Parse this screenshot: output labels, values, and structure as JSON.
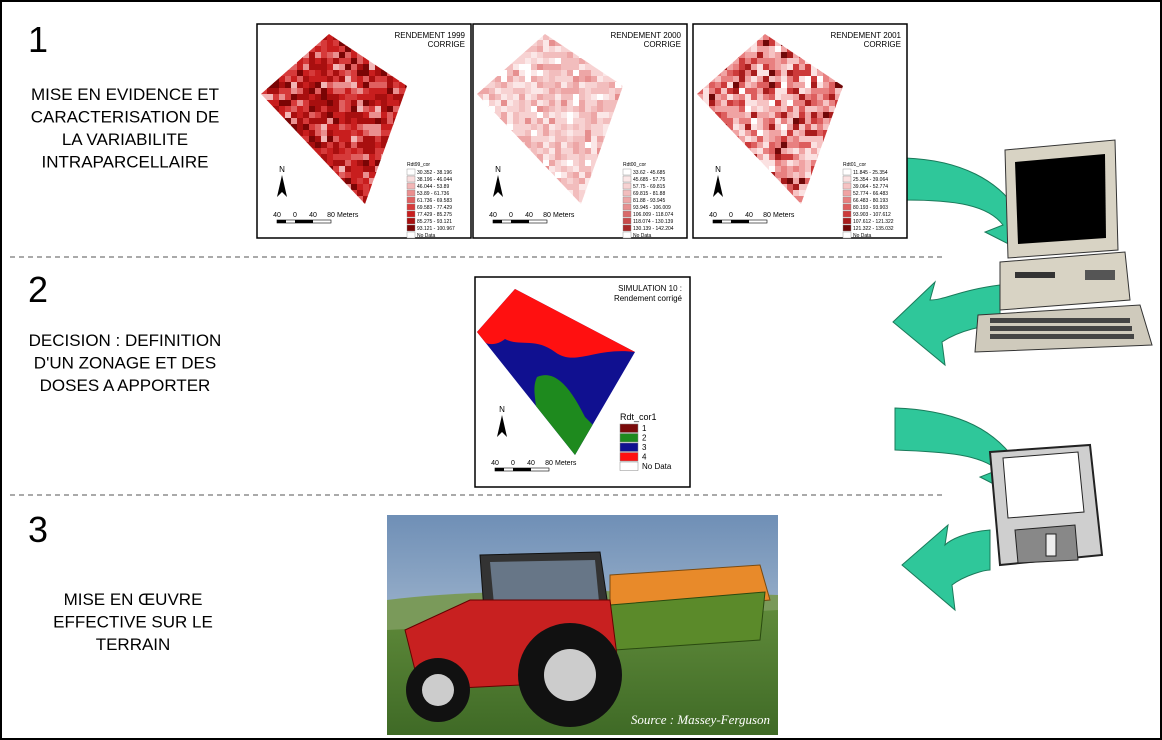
{
  "steps": [
    {
      "number": "1",
      "text": [
        "MISE EN EVIDENCE ET",
        "CARACTERISATION DE",
        "LA VARIABILITE",
        "INTRAPARCELLAIRE"
      ]
    },
    {
      "number": "2",
      "text": [
        "DECISION : DEFINITION",
        "D'UN ZONAGE ET DES",
        "DOSES A APPORTER"
      ]
    },
    {
      "number": "3",
      "text": [
        "MISE EN ŒUVRE",
        "EFFECTIVE SUR LE",
        "TERRAIN"
      ]
    }
  ],
  "maps": [
    {
      "title": [
        "RENDEMENT 1999",
        "CORRIGE"
      ],
      "legend_title": "Rdt99_cor",
      "legend": [
        "30.352 - 38.196",
        "38.196 - 46.044",
        "46.044 - 53.89",
        "53.89 - 61.736",
        "61.736 - 69.583",
        "69.583 - 77.429",
        "77.429 - 85.275",
        "85.275 - 93.121",
        "93.121 - 100.967",
        "No Data"
      ]
    },
    {
      "title": [
        "RENDEMENT 2000",
        "CORRIGE"
      ],
      "legend_title": "Rdt00_cor",
      "legend": [
        "33.62 - 45.685",
        "45.685 - 57.75",
        "57.75 - 69.815",
        "69.815 - 81.88",
        "81.88 - 93.945",
        "93.945 - 106.009",
        "106.009 - 118.074",
        "118.074 - 130.139",
        "130.139 - 142.204",
        "No Data"
      ]
    },
    {
      "title": [
        "RENDEMENT 2001",
        "CORRIGE"
      ],
      "legend_title": "Rdt01_cor",
      "legend": [
        "11.845 - 25.354",
        "25.354 - 39.064",
        "39.064 - 52.774",
        "52.774 - 66.483",
        "66.483 - 80.193",
        "80.193 - 93.903",
        "93.903 - 107.612",
        "107.612 - 121.322",
        "121.322 - 135.032",
        "No Data"
      ]
    }
  ],
  "simulation": {
    "title": [
      "SIMULATION 10 :",
      "Rendement corrigé"
    ],
    "legend_title": "Rdt_cor1",
    "legend": [
      "1",
      "2",
      "3",
      "4",
      "No Data"
    ]
  },
  "north": "N",
  "scale": [
    "40",
    "0",
    "40",
    "80",
    "Meters"
  ],
  "photo_source": "Source : Massey-Ferguson"
}
